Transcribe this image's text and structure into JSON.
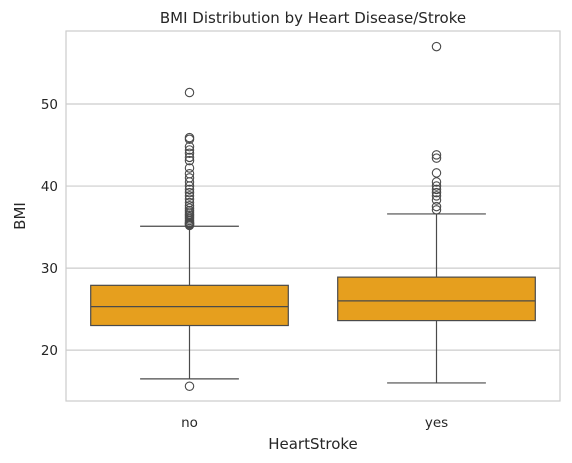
{
  "chart_data": {
    "type": "box",
    "title": "BMI Distribution by Heart Disease/Stroke",
    "xlabel": "HeartStroke",
    "ylabel": "BMI",
    "ylim": [
      13.8,
      58.9
    ],
    "yticks": [
      20,
      30,
      40,
      50
    ],
    "grid": true,
    "box_color": "#E69F1E",
    "edge_color": "#4a4a4a",
    "categories": [
      {
        "label": "no",
        "whisker_low": 16.5,
        "q1": 23.0,
        "median": 25.3,
        "q3": 27.9,
        "whisker_high": 35.1,
        "outliers": [
          15.6,
          35.2,
          35.3,
          35.4,
          35.5,
          35.6,
          35.8,
          36.0,
          36.2,
          36.4,
          36.6,
          36.8,
          37.0,
          37.3,
          37.6,
          38.0,
          38.4,
          38.8,
          39.2,
          39.6,
          40.0,
          40.5,
          41.0,
          41.5,
          42.2,
          43.1,
          43.5,
          44.0,
          44.4,
          44.8,
          45.7,
          45.9,
          51.4
        ]
      },
      {
        "label": "yes",
        "whisker_low": 16.0,
        "q1": 23.6,
        "median": 26.0,
        "q3": 28.9,
        "whisker_high": 36.6,
        "outliers": [
          37.1,
          37.5,
          38.3,
          38.8,
          39.2,
          39.6,
          40.0,
          40.5,
          41.6,
          43.4,
          43.8,
          57.0
        ]
      }
    ]
  }
}
